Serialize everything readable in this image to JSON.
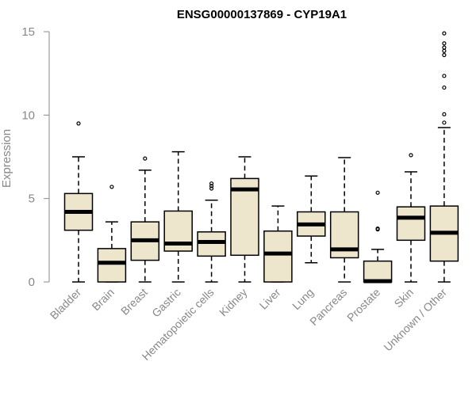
{
  "chart_data": {
    "type": "box",
    "title": "ENSG00000137869 - CYP19A1",
    "ylabel": "Expression",
    "xlabel": "",
    "ylim": [
      0,
      15
    ],
    "yticks": [
      0,
      5,
      10,
      15
    ],
    "grid": false,
    "box_color": "#ede5cc",
    "categories": [
      "Bladder",
      "Brain",
      "Breast",
      "Gastric",
      "Hematopoietic cells",
      "Kidney",
      "Liver",
      "Lung",
      "Pancreas",
      "Prostate",
      "Skin",
      "Unknown / Other"
    ],
    "boxes": [
      {
        "min": 0.0,
        "q1": 3.1,
        "median": 4.2,
        "q3": 5.3,
        "max": 7.5,
        "outliers": [
          9.5
        ]
      },
      {
        "min": 0.0,
        "q1": 0.0,
        "median": 1.15,
        "q3": 2.0,
        "max": 3.6,
        "outliers": [
          5.7
        ]
      },
      {
        "min": 0.0,
        "q1": 1.3,
        "median": 2.5,
        "q3": 3.6,
        "max": 6.7,
        "outliers": [
          7.4
        ]
      },
      {
        "min": 0.0,
        "q1": 1.85,
        "median": 2.3,
        "q3": 4.25,
        "max": 7.8,
        "outliers": []
      },
      {
        "min": 0.0,
        "q1": 1.55,
        "median": 2.4,
        "q3": 3.0,
        "max": 4.9,
        "outliers": [
          5.6,
          5.75,
          5.9
        ]
      },
      {
        "min": 0.0,
        "q1": 1.6,
        "median": 5.55,
        "q3": 6.2,
        "max": 7.5,
        "outliers": []
      },
      {
        "min": 0.0,
        "q1": 0.0,
        "median": 1.7,
        "q3": 3.05,
        "max": 4.55,
        "outliers": []
      },
      {
        "min": 1.15,
        "q1": 2.75,
        "median": 3.45,
        "q3": 4.2,
        "max": 6.35,
        "outliers": []
      },
      {
        "min": 0.0,
        "q1": 1.45,
        "median": 1.95,
        "q3": 4.2,
        "max": 7.45,
        "outliers": []
      },
      {
        "min": 0.0,
        "q1": 0.0,
        "median": 0.05,
        "q3": 1.25,
        "max": 1.95,
        "outliers": [
          3.15,
          3.2,
          5.35
        ]
      },
      {
        "min": 0.0,
        "q1": 2.5,
        "median": 3.85,
        "q3": 4.5,
        "max": 6.6,
        "outliers": [
          7.6
        ]
      },
      {
        "min": 0.0,
        "q1": 1.25,
        "median": 2.95,
        "q3": 4.55,
        "max": 9.25,
        "outliers": [
          9.55,
          10.05,
          11.65,
          12.35,
          13.6,
          13.85,
          14.05,
          14.3,
          14.9
        ]
      }
    ]
  }
}
